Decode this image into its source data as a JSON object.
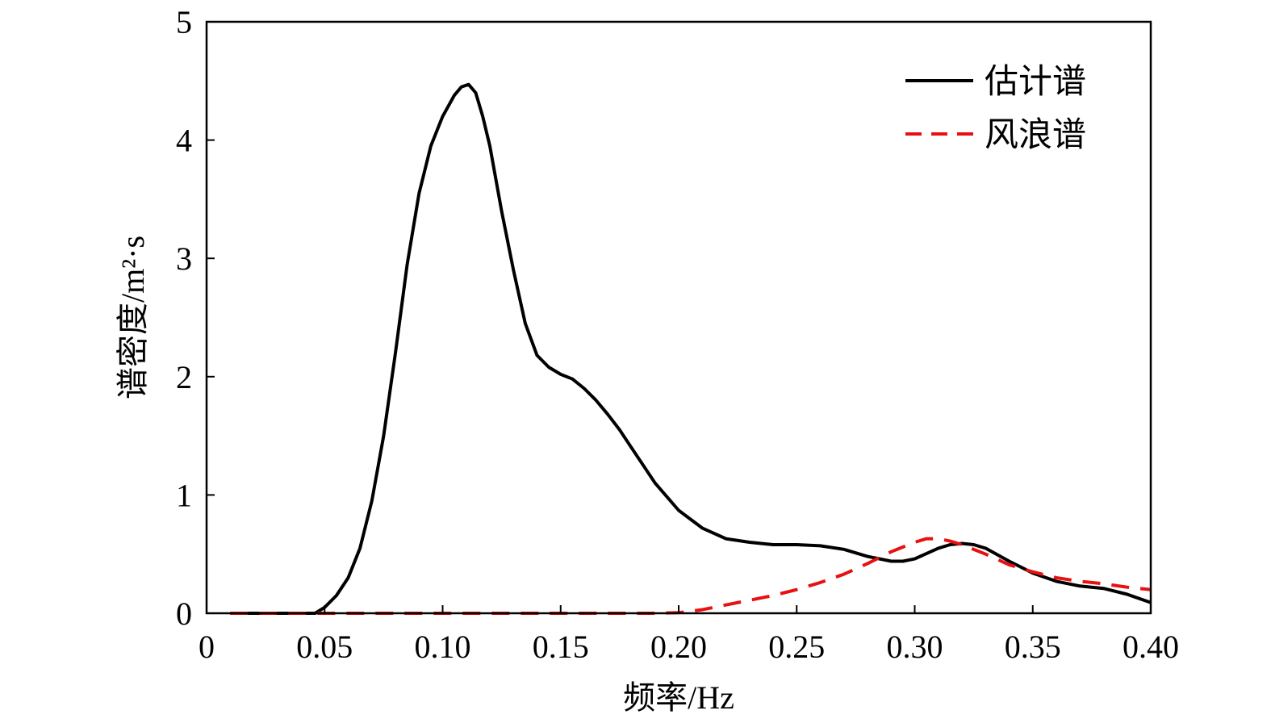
{
  "chart_data": {
    "type": "line",
    "title": "",
    "xlabel": "频率/Hz",
    "ylabel": "谱密度/m²·s",
    "xlim": [
      0,
      0.4
    ],
    "ylim": [
      0,
      5
    ],
    "xticks": [
      "0",
      "0.05",
      "0.10",
      "0.15",
      "0.20",
      "0.25",
      "0.30",
      "0.35",
      "0.40"
    ],
    "yticks": [
      "0",
      "1",
      "2",
      "3",
      "4",
      "5"
    ],
    "grid": false,
    "legend_position": "top-right",
    "series": [
      {
        "name": "估计谱",
        "color": "#000000",
        "dash": "solid",
        "x": [
          0.01,
          0.02,
          0.03,
          0.04,
          0.046,
          0.05,
          0.055,
          0.06,
          0.065,
          0.07,
          0.075,
          0.08,
          0.085,
          0.09,
          0.095,
          0.1,
          0.105,
          0.108,
          0.111,
          0.114,
          0.117,
          0.12,
          0.125,
          0.13,
          0.135,
          0.14,
          0.145,
          0.15,
          0.155,
          0.16,
          0.165,
          0.17,
          0.175,
          0.18,
          0.19,
          0.2,
          0.21,
          0.22,
          0.23,
          0.24,
          0.25,
          0.26,
          0.27,
          0.28,
          0.29,
          0.295,
          0.3,
          0.31,
          0.315,
          0.32,
          0.325,
          0.33,
          0.34,
          0.35,
          0.36,
          0.37,
          0.38,
          0.39,
          0.4
        ],
        "y": [
          0,
          0,
          0,
          0,
          0,
          0.05,
          0.15,
          0.3,
          0.55,
          0.95,
          1.5,
          2.2,
          2.95,
          3.55,
          3.95,
          4.2,
          4.38,
          4.45,
          4.47,
          4.4,
          4.2,
          3.95,
          3.4,
          2.9,
          2.45,
          2.18,
          2.08,
          2.02,
          1.98,
          1.9,
          1.8,
          1.68,
          1.55,
          1.4,
          1.1,
          0.87,
          0.72,
          0.63,
          0.6,
          0.58,
          0.58,
          0.57,
          0.54,
          0.48,
          0.44,
          0.44,
          0.46,
          0.55,
          0.58,
          0.59,
          0.58,
          0.55,
          0.44,
          0.34,
          0.27,
          0.23,
          0.21,
          0.16,
          0.09
        ]
      },
      {
        "name": "风浪谱",
        "color": "#e81010",
        "dash": "dashed",
        "x": [
          0.01,
          0.05,
          0.1,
          0.15,
          0.19,
          0.2,
          0.21,
          0.22,
          0.23,
          0.24,
          0.25,
          0.26,
          0.27,
          0.28,
          0.29,
          0.3,
          0.305,
          0.31,
          0.315,
          0.32,
          0.33,
          0.34,
          0.35,
          0.36,
          0.37,
          0.38,
          0.39,
          0.4
        ],
        "y": [
          0,
          0,
          0,
          0,
          0,
          0.005,
          0.03,
          0.07,
          0.11,
          0.15,
          0.2,
          0.26,
          0.33,
          0.42,
          0.52,
          0.6,
          0.63,
          0.63,
          0.61,
          0.58,
          0.5,
          0.41,
          0.35,
          0.3,
          0.27,
          0.25,
          0.22,
          0.2
        ]
      }
    ]
  }
}
